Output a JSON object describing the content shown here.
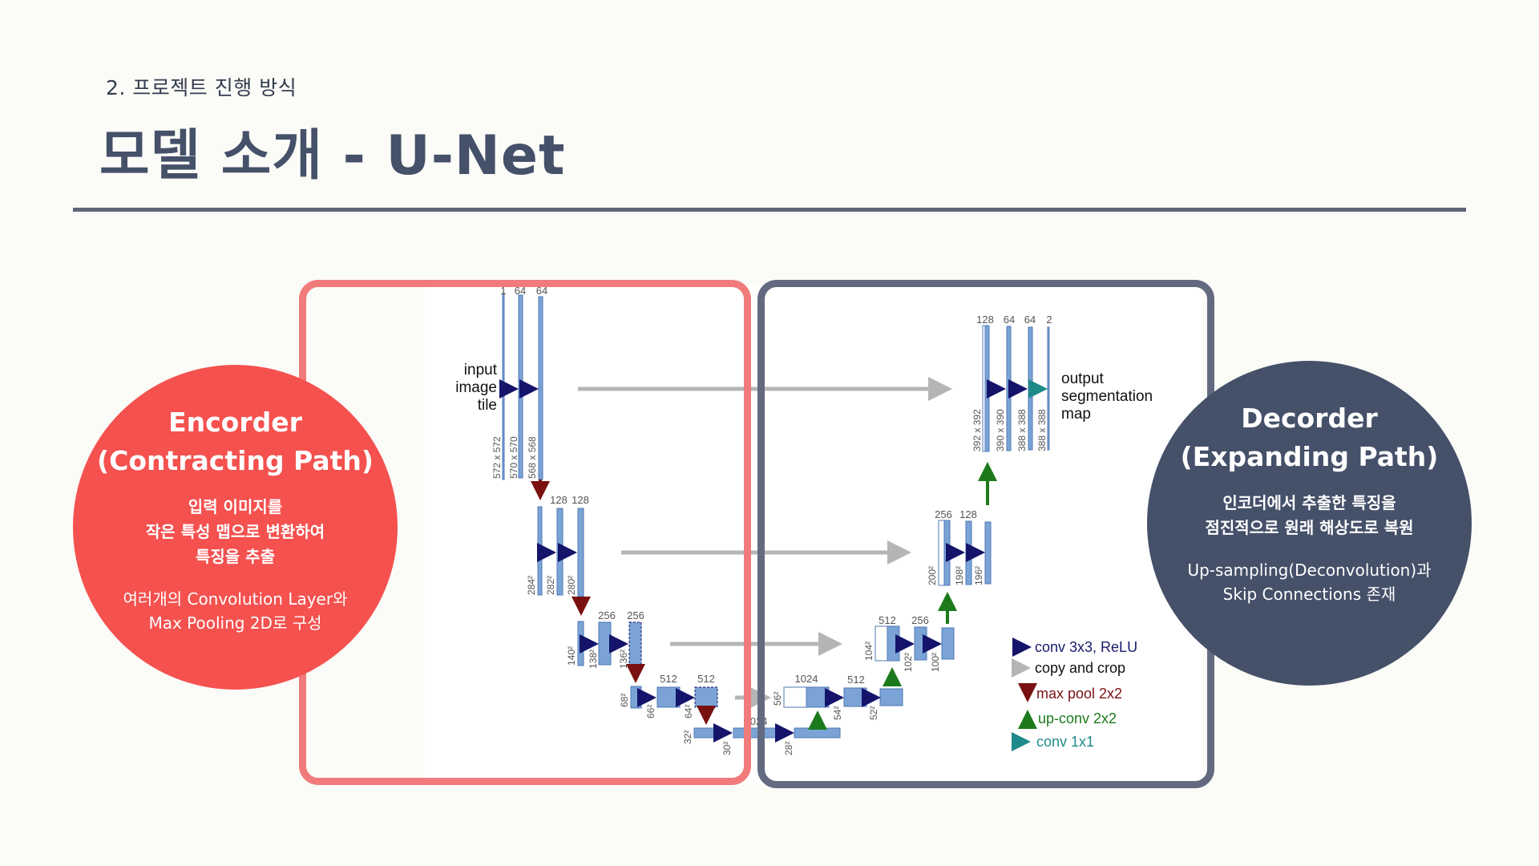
{
  "header": {
    "subtitle": "2. 프로젝트 진행 방식",
    "title": "모델 소개 - U-Net"
  },
  "encoder": {
    "title_line1": "Encorder",
    "title_line2": "(Contracting Path)",
    "bold_line1": "입력 이미지를",
    "bold_line2": "작은 특성 맵으로 변환하여",
    "bold_line3": "특징을 추출",
    "text_line1": "여러개의 Convolution Layer와",
    "text_line2": "Max Pooling 2D로 구성"
  },
  "decoder": {
    "title_line1": "Decorder",
    "title_line2": "(Expanding Path)",
    "bold_line1": "인코더에서 추출한 특징을",
    "bold_line2": "점진적으로 원래 해상도로 복원",
    "text_line1": "Up-sampling(Deconvolution)과",
    "text_line2": "Skip Connections 존재"
  },
  "diagram": {
    "input_label": [
      "input",
      "image",
      "tile"
    ],
    "output_label": [
      "output",
      "segmentation",
      "map"
    ],
    "channel_labels": [
      "1",
      "64",
      "64",
      "128",
      "128",
      "256",
      "256",
      "512",
      "512",
      "1024",
      "1024",
      "512",
      "512",
      "256",
      "256",
      "256",
      "128",
      "128",
      "64",
      "64",
      "2"
    ],
    "size_labels": [
      "572 x 572",
      "570 x 570",
      "568 x 568",
      "284²",
      "282²",
      "280²",
      "140²",
      "138²",
      "136²",
      "68²",
      "66²",
      "64²",
      "32²",
      "30²",
      "28²",
      "56²",
      "54²",
      "52²",
      "104²",
      "102²",
      "100²",
      "200²",
      "198²",
      "196²",
      "392 x 392",
      "390 x 390",
      "388 x 388",
      "388 x 388"
    ],
    "legend": [
      {
        "label": "conv 3x3, ReLU",
        "color": "#1a1a6e",
        "icon": "arrow-right-icon"
      },
      {
        "label": "copy and crop",
        "color": "#b0b0b0",
        "icon": "arrow-right-icon"
      },
      {
        "label": "max pool 2x2",
        "color": "#7a1010",
        "icon": "arrow-down-icon"
      },
      {
        "label": "up-conv 2x2",
        "color": "#1c7a1c",
        "icon": "arrow-up-icon"
      },
      {
        "label": "conv 1x1",
        "color": "#1f8a8a",
        "icon": "arrow-right-icon"
      }
    ],
    "colors": {
      "block": "#7ba3d6",
      "block_border": "#4f78b4",
      "copy": "#b5b5b5",
      "conv": "#14146b",
      "pool": "#7a1010",
      "upconv": "#1c7a1c",
      "conv1x1": "#1f8a8a"
    }
  }
}
